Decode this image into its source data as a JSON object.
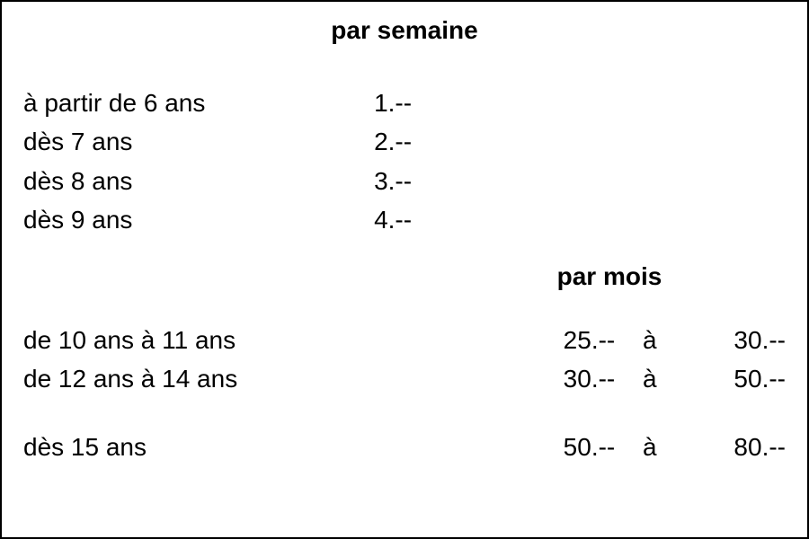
{
  "type": "table",
  "background_color": "#ffffff",
  "border_color": "#000000",
  "text_color": "#000000",
  "font_family": "Arial",
  "font_size_body": 28,
  "font_size_title": 28,
  "title_weight": "bold",
  "titles": {
    "per_week": "par semaine",
    "per_month": "par mois"
  },
  "weekly": {
    "rows": [
      {
        "age_label": "à partir de 6 ans",
        "amount": "1.--"
      },
      {
        "age_label": "dès 7 ans",
        "amount": "2.--"
      },
      {
        "age_label": "dès 8 ans",
        "amount": "3.--"
      },
      {
        "age_label": "dès 9 ans",
        "amount": "4.--"
      }
    ],
    "column_widths_percent": {
      "label": 46,
      "value": 54
    }
  },
  "monthly": {
    "separator_word": "à",
    "rows": [
      {
        "age_label": "de 10 ans à 11 ans",
        "low": "25.--",
        "high": "30.--"
      },
      {
        "age_label": "de 12 ans à 14 ans",
        "low": "30.--",
        "high": "50.--"
      },
      {
        "age_label": "dès 15 ans",
        "low": "50.--",
        "high": "80.--"
      }
    ],
    "column_widths_percent": {
      "label": 68,
      "low": 10,
      "a": 6,
      "high": 12
    }
  }
}
